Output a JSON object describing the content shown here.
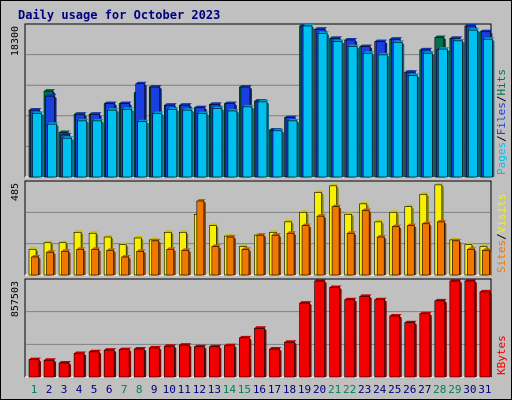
{
  "chart_data": {
    "type": "bar",
    "title": "Daily usage for October 2023",
    "days": [
      "1",
      "2",
      "3",
      "4",
      "5",
      "6",
      "7",
      "8",
      "9",
      "10",
      "11",
      "12",
      "13",
      "14",
      "15",
      "16",
      "17",
      "18",
      "19",
      "20",
      "21",
      "22",
      "23",
      "24",
      "25",
      "26",
      "27",
      "28",
      "29",
      "30",
      "31"
    ],
    "weekend_days": [
      1,
      7,
      8,
      14,
      15,
      21,
      22,
      28,
      29
    ],
    "colors": {
      "hits": "#007050",
      "files": "#1a3fe0",
      "pages": "#00c0f0",
      "visits": "#f8f000",
      "sites": "#f07800",
      "kbytes": "#f00000",
      "weekend_label": "#00805c",
      "weekday_label": "#000080",
      "title": "#000080"
    },
    "panels": [
      {
        "name": "requests",
        "ymax_label": "18300",
        "ymax": 18300,
        "legend": [
          {
            "text": "Pages",
            "color": "#00c0f0"
          },
          {
            "text": "/",
            "color": "#000000"
          },
          {
            "text": "Files",
            "color": "#1a3fe0"
          },
          {
            "text": "/",
            "color": "#000000"
          },
          {
            "text": "Hits",
            "color": "#007050"
          }
        ],
        "series": [
          {
            "name": "Hits",
            "values": [
              8100,
              10400,
              5400,
              7600,
              7600,
              8900,
              8900,
              10200,
              10900,
              8700,
              8700,
              8400,
              8800,
              8900,
              10900,
              9200,
              5700,
              7200,
              19200,
              17900,
              16800,
              16600,
              15800,
              16400,
              16700,
              12700,
              15400,
              16900,
              16800,
              18400,
              17600
            ]
          },
          {
            "name": "Files",
            "values": [
              8100,
              9800,
              5100,
              7600,
              7600,
              8900,
              8900,
              11300,
              10900,
              8700,
              8700,
              8400,
              8800,
              8900,
              10900,
              9200,
              5700,
              7200,
              19200,
              17900,
              16800,
              16600,
              15800,
              16400,
              16700,
              12700,
              15400,
              15400,
              16800,
              18400,
              17600
            ]
          },
          {
            "name": "Pages",
            "values": [
              7700,
              6400,
              4700,
              6800,
              6800,
              8100,
              8200,
              6700,
              7700,
              8200,
              8100,
              7700,
              8300,
              8000,
              8500,
              9100,
              5600,
              6800,
              18800,
              17400,
              16400,
              15800,
              15000,
              14800,
              16300,
              12300,
              15000,
              15500,
              16500,
              17800,
              16700
            ]
          }
        ]
      },
      {
        "name": "visits",
        "ymax_label": "485",
        "ymax": 485,
        "legend": [
          {
            "text": "Sites",
            "color": "#f07800"
          },
          {
            "text": "/",
            "color": "#000000"
          },
          {
            "text": "Visits",
            "color": "#f8f000"
          }
        ],
        "series": [
          {
            "name": "Visits",
            "values": [
              135,
              170,
              170,
              225,
              220,
              200,
              160,
              195,
              185,
              225,
              225,
              320,
              260,
              205,
              150,
              210,
              225,
              280,
              330,
              435,
              470,
              320,
              375,
              280,
              330,
              360,
              425,
              475,
              185,
              160,
              150
            ]
          },
          {
            "name": "Sites",
            "values": [
              95,
              120,
              125,
              135,
              135,
              130,
              95,
              125,
              180,
              135,
              130,
              390,
              150,
              200,
              135,
              210,
              210,
              220,
              260,
              310,
              360,
              220,
              340,
              200,
              255,
              260,
              270,
              280,
              180,
              135,
              130
            ]
          }
        ]
      },
      {
        "name": "kbytes",
        "ymax_label": "857503",
        "ymax": 857503,
        "legend": [
          {
            "text": "KBytes",
            "color": "#f00000"
          }
        ],
        "series": [
          {
            "name": "KBytes",
            "values": [
              155000,
              150000,
              125000,
              210000,
              225000,
              240000,
              245000,
              250000,
              260000,
              275000,
              285000,
              270000,
              270000,
              280000,
              350000,
              435000,
              250000,
              310000,
              660000,
              890000,
              800000,
              690000,
              720000,
              690000,
              545000,
              485000,
              565000,
              680000,
              880000,
              900000,
              760000
            ]
          }
        ]
      }
    ]
  }
}
